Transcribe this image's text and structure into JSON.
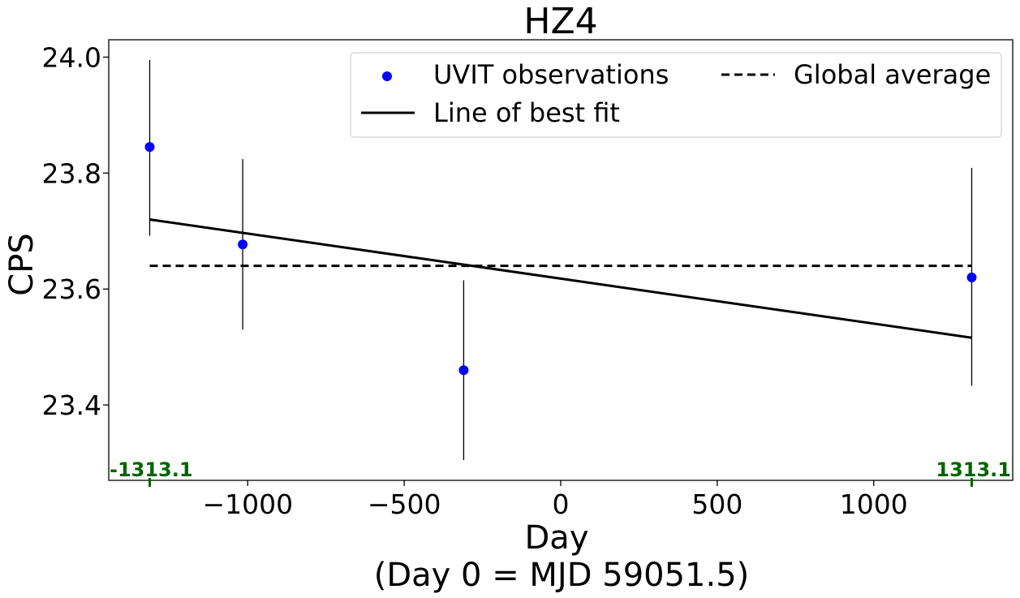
{
  "chart_data": {
    "type": "scatter",
    "title": "HZ4",
    "xlabel": "Day",
    "xlabel_note": "(Day 0 = MJD 59051.5)",
    "ylabel": "CPS",
    "xlim": [
      -1444,
      1444
    ],
    "ylim": [
      23.27,
      24.03
    ],
    "xticks": [
      -1000,
      -500,
      0,
      500,
      1000
    ],
    "xtick_labels": [
      "−1000",
      "−500",
      "0",
      "500",
      "1000"
    ],
    "yticks": [
      23.4,
      23.6,
      23.8,
      24.0
    ],
    "ytick_labels": [
      "23.4",
      "23.6",
      "23.8",
      "24.0"
    ],
    "grid": false,
    "legend_position": "top-right",
    "series": [
      {
        "name": "UVIT observations",
        "kind": "scatter",
        "color": "#0000ff",
        "x": [
          -1313.1,
          -1016,
          -310,
          1313.1
        ],
        "y": [
          23.845,
          23.677,
          23.46,
          23.62
        ],
        "yerr_low": [
          0.153,
          0.147,
          0.155,
          0.187
        ],
        "yerr_high": [
          0.15,
          0.147,
          0.155,
          0.189
        ]
      },
      {
        "name": "Line of best fit",
        "kind": "line",
        "color": "#000000",
        "style": "solid",
        "x": [
          -1313.1,
          1313.1
        ],
        "y": [
          23.72,
          23.516
        ]
      },
      {
        "name": "Global average",
        "kind": "line",
        "color": "#000000",
        "style": "dashed",
        "x": [
          -1313.1,
          1313.1
        ],
        "y": [
          23.64,
          23.64
        ]
      }
    ],
    "markers": [
      {
        "x": -1313.1,
        "label": "-1313.1",
        "color": "#006400"
      },
      {
        "x": 1313.1,
        "label": "1313.1",
        "color": "#006400"
      }
    ]
  }
}
